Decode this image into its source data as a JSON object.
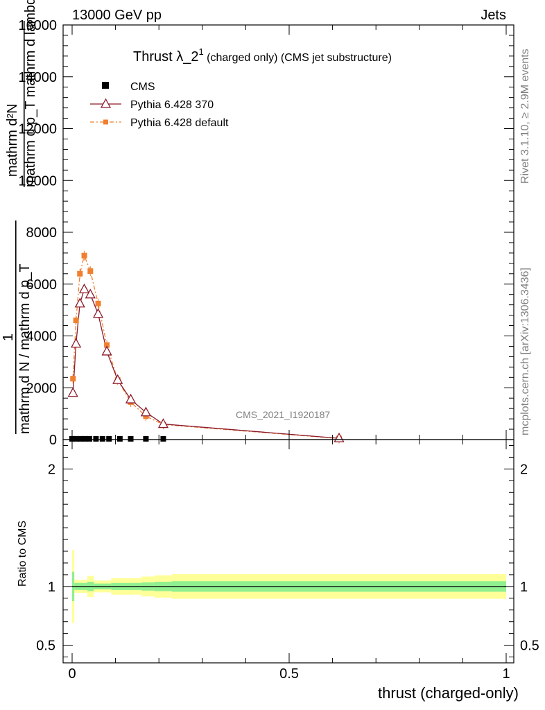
{
  "header": {
    "left": "13000 GeV pp",
    "right": "Jets"
  },
  "side_labels": {
    "rivet": "Rivet 3.1.10, ≥ 2.9M events",
    "mcplots": "mcplots.cern.ch [arXiv:1306.3436]"
  },
  "chart_data": [
    {
      "type": "line",
      "panel": "main",
      "title_main": "Thrust λ_2",
      "title_sup": "1",
      "title_rest": " (charged only) (CMS jet substructure)",
      "watermark": "CMS_2021_I1920187",
      "ylabel_numerator": "mathrm d²N",
      "ylabel_denominator": "mathrm d p_T mathrm d lambda",
      "ylabel_prefix": "1",
      "ylabel_norm": "mathrm d N / mathrm d p_T",
      "ylabel_sub": "T",
      "xlim": [
        0,
        1
      ],
      "ylim": [
        0,
        16000
      ],
      "yticks": [
        0,
        2000,
        4000,
        6000,
        8000,
        10000,
        12000,
        14000,
        16000
      ],
      "ytick_labels": [
        "0",
        "2000",
        "4000",
        "6000",
        "8000",
        "10000",
        "12000",
        "14000",
        "16000"
      ],
      "legend_position": "top-left",
      "series": [
        {
          "name": "CMS",
          "color": "#000000",
          "marker": "square",
          "x": [
            0.0,
            0.01,
            0.02,
            0.03,
            0.04,
            0.055,
            0.07,
            0.085,
            0.11,
            0.135,
            0.17,
            0.21
          ],
          "y": [
            30,
            30,
            30,
            30,
            30,
            30,
            30,
            30,
            30,
            30,
            30,
            30
          ]
        },
        {
          "name": "Pythia 6.428 370",
          "color": "#8b1a2b",
          "marker": "triangle-open",
          "x": [
            0.002,
            0.009,
            0.018,
            0.028,
            0.042,
            0.06,
            0.08,
            0.105,
            0.135,
            0.17,
            0.21,
            0.615
          ],
          "y": [
            1800,
            3700,
            5250,
            5800,
            5600,
            4850,
            3400,
            2300,
            1550,
            1050,
            600,
            50
          ]
        },
        {
          "name": "Pythia 6.428 default",
          "color": "#f08030",
          "marker": "square-small",
          "x": [
            0.002,
            0.009,
            0.018,
            0.028,
            0.042,
            0.06,
            0.08,
            0.105,
            0.135,
            0.17,
            0.21,
            0.615
          ],
          "y": [
            2350,
            4600,
            6400,
            7100,
            6500,
            5250,
            3650,
            2300,
            1450,
            900,
            580,
            40
          ]
        }
      ]
    },
    {
      "type": "area",
      "panel": "ratio",
      "ylabel": "Ratio to CMS",
      "xlabel": "thrust (charged-only)",
      "xlim": [
        0,
        1
      ],
      "ylim": [
        0.35,
        2.25
      ],
      "xticks": [
        0,
        0.5,
        1
      ],
      "xtick_labels": [
        "0",
        "0.5",
        "1"
      ],
      "yticks": [
        0.5,
        1,
        2
      ],
      "ytick_labels": [
        "0.5",
        "1",
        "2"
      ],
      "band_colors": {
        "inner": "#90f090",
        "outer": "#ffff99",
        "line": "#000000"
      },
      "bins": [
        {
          "x0": 0.0,
          "x1": 0.005,
          "inner": 0.125,
          "outer": 0.31
        },
        {
          "x0": 0.005,
          "x1": 0.035,
          "inner": 0.03,
          "outer": 0.055
        },
        {
          "x0": 0.035,
          "x1": 0.05,
          "inner": 0.04,
          "outer": 0.09
        },
        {
          "x0": 0.05,
          "x1": 0.09,
          "inner": 0.025,
          "outer": 0.05
        },
        {
          "x0": 0.09,
          "x1": 0.16,
          "inner": 0.03,
          "outer": 0.07
        },
        {
          "x0": 0.16,
          "x1": 0.19,
          "inner": 0.035,
          "outer": 0.085
        },
        {
          "x0": 0.19,
          "x1": 0.23,
          "inner": 0.04,
          "outer": 0.095
        },
        {
          "x0": 0.23,
          "x1": 1.0,
          "inner": 0.045,
          "outer": 0.105
        }
      ]
    }
  ]
}
